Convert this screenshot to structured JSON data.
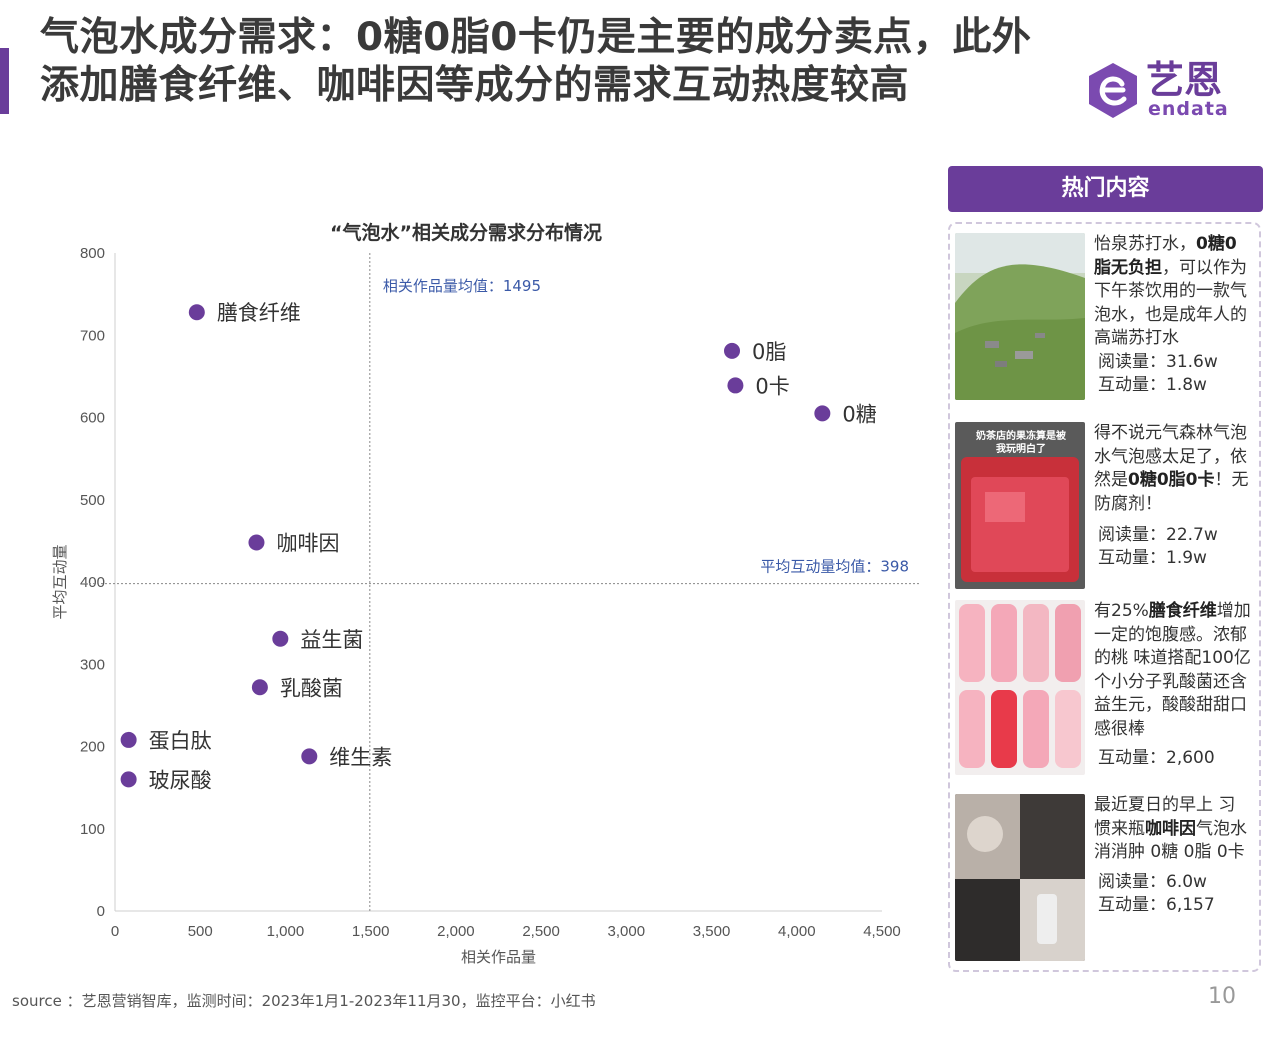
{
  "header": {
    "title": "气泡水成分需求：0糖0脂0卡仍是主要的成分卖点，此外添加膳食纤维、咖啡因等成分的需求互动热度较高"
  },
  "logo": {
    "cn": "艺恩",
    "en": "endata",
    "brand_color": "#6a3d9a"
  },
  "chart_data": {
    "type": "scatter",
    "title": "“气泡水”相关成分需求分布情况",
    "xlabel": "相关作品量",
    "ylabel": "平均互动量",
    "xlim": [
      0,
      4500
    ],
    "ylim": [
      0,
      800
    ],
    "xticks": [
      0,
      500,
      1000,
      1500,
      2000,
      2500,
      3000,
      3500,
      4000,
      4500
    ],
    "xtick_labels": [
      "0",
      "500",
      "1,000",
      "1,500",
      "2,000",
      "2,500",
      "3,000",
      "3,500",
      "4,000",
      "4,500"
    ],
    "yticks": [
      0,
      100,
      200,
      300,
      400,
      500,
      600,
      700,
      800
    ],
    "ytick_labels": [
      "0",
      "100",
      "200",
      "300",
      "400",
      "500",
      "600",
      "700",
      "800"
    ],
    "grid": false,
    "point_color": "#6a3d9a",
    "points": [
      {
        "label": "膳食纤维",
        "x": 480,
        "y": 728
      },
      {
        "label": "0脂",
        "x": 3620,
        "y": 681
      },
      {
        "label": "0卡",
        "x": 3640,
        "y": 639
      },
      {
        "label": "0糖",
        "x": 4150,
        "y": 605
      },
      {
        "label": "咖啡因",
        "x": 830,
        "y": 448
      },
      {
        "label": "益生菌",
        "x": 970,
        "y": 331
      },
      {
        "label": "乳酸菌",
        "x": 850,
        "y": 272
      },
      {
        "label": "蛋白肽",
        "x": 80,
        "y": 208
      },
      {
        "label": "维生素",
        "x": 1140,
        "y": 188
      },
      {
        "label": "玻尿酸",
        "x": 80,
        "y": 160
      }
    ],
    "reference_lines": [
      {
        "axis": "x",
        "value": 1495,
        "label": "相关作品量均值：1495"
      },
      {
        "axis": "y",
        "value": 398,
        "label": "平均互动量均值：398"
      }
    ]
  },
  "panel": {
    "title": "热门内容",
    "cards": [
      {
        "pre": "怡泉苏打水，",
        "bold": "0糖0脂无负担",
        "post": "，可以作为下午茶饮用的一款气泡水，也是成年人的高端苏打水",
        "stats": [
          "阅读量：31.6w",
          "互动量：1.8w"
        ]
      },
      {
        "pre": "得不说元气森林气泡水气泡感太足了，依然是",
        "bold": "0糖0脂0卡",
        "post": "！无防腐剂！",
        "thumb_caption": "奶茶店的果冻算是被我玩明白了",
        "stats": [
          "阅读量：22.7w",
          "互动量：1.9w"
        ]
      },
      {
        "pre": "有25%",
        "bold": "膳食纤维",
        "post": "增加一定的饱腹感。浓郁的桃  味道搭配100亿个小分子乳酸菌还含益生元，酸酸甜甜口感很棒",
        "stats": [
          "互动量：2,600"
        ]
      },
      {
        "pre": "最近夏日的早上 习惯来瓶",
        "bold": "咖啡因",
        "post": "气泡水消消肿 0糖 0脂 0卡",
        "stats": [
          "阅读量：6.0w",
          "互动量：6,157"
        ]
      }
    ]
  },
  "footer": {
    "source": "source ：艺恩营销智库，监测时间：2023年1月1-2023年11月30，监控平台：小红书",
    "page": "10"
  }
}
